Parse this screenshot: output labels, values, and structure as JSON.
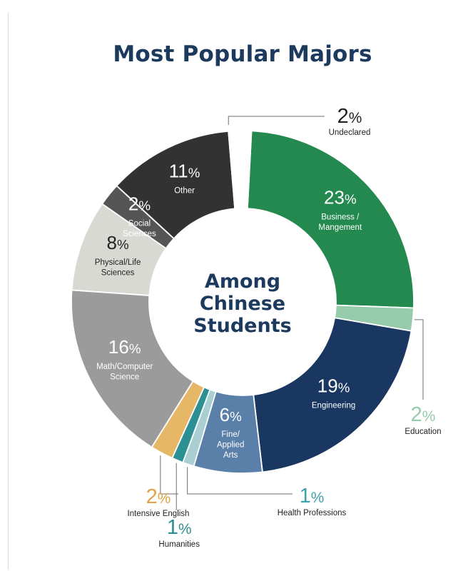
{
  "chart_data": {
    "type": "pie",
    "title": "Most Popular Majors",
    "center_label": [
      "Among",
      "Chinese",
      "Students"
    ],
    "value_suffix": "%",
    "slices": [
      {
        "name": "Business / Mangement",
        "label_lines": [
          "Business /",
          "Mangement"
        ],
        "value": 23,
        "color": "#23894e",
        "text_color": "#ffffff",
        "label_pos": "inside"
      },
      {
        "name": "Education",
        "label_lines": [
          "Education"
        ],
        "value": 2,
        "color": "#96cbac",
        "text_color": "#96cbac",
        "label_pos": "outside-right"
      },
      {
        "name": "Engineering",
        "label_lines": [
          "Engineering"
        ],
        "value": 19,
        "color": "#193760",
        "text_color": "#ffffff",
        "label_pos": "inside"
      },
      {
        "name": "Fine/ Applied Arts",
        "label_lines": [
          "Fine/",
          "Applied",
          "Arts"
        ],
        "value": 6,
        "color": "#5a7fa8",
        "text_color": "#ffffff",
        "label_pos": "inside"
      },
      {
        "name": "Health Professions",
        "label_lines": [
          "Health Professions"
        ],
        "value": 1,
        "color": "#a9cfd2",
        "text_color": "#3fa1ab",
        "label_pos": "outside-bottom"
      },
      {
        "name": "Humanities",
        "label_lines": [
          "Humanities"
        ],
        "value": 1,
        "color": "#2b8f94",
        "text_color": "#2b8f94",
        "label_pos": "outside-bottom"
      },
      {
        "name": "Intensive English",
        "label_lines": [
          "Intensive English"
        ],
        "value": 2,
        "color": "#e7b768",
        "text_color": "#dfa547",
        "label_pos": "outside-left"
      },
      {
        "name": "Math/Computer Science",
        "label_lines": [
          "Math/Computer",
          "Science"
        ],
        "value": 16,
        "color": "#9b9b9b",
        "text_color": "#ffffff",
        "label_pos": "inside"
      },
      {
        "name": "Physical/Life Sciences",
        "label_lines": [
          "Physical/Life",
          "Sciences"
        ],
        "value": 8,
        "color": "#d9d9d4",
        "text_color": "#222222",
        "label_pos": "inside"
      },
      {
        "name": "Social Sciences",
        "label_lines": [
          "Social",
          "Sciences"
        ],
        "value": 2,
        "color": "#555555",
        "text_color": "#ffffff",
        "label_pos": "inside"
      },
      {
        "name": "Other",
        "label_lines": [
          "Other"
        ],
        "value": 11,
        "color": "#323232",
        "text_color": "#ffffff",
        "label_pos": "inside"
      },
      {
        "name": "Undeclared",
        "label_lines": [
          "Undeclared"
        ],
        "value": 2,
        "color": "#ffffff",
        "text_color": "#222222",
        "label_pos": "outside-top"
      }
    ]
  }
}
